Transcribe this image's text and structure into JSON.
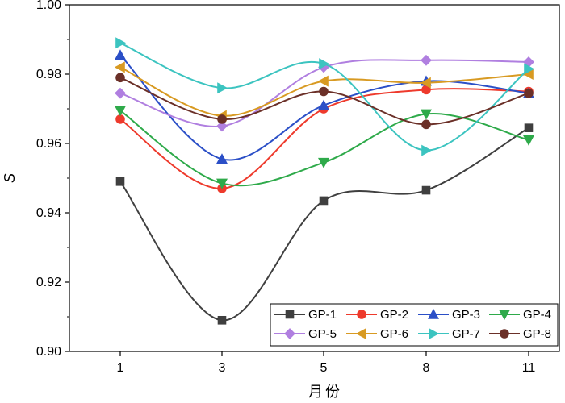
{
  "chart_data": {
    "type": "line",
    "xlabel": "月份",
    "ylabel": "S",
    "x": [
      1,
      3,
      5,
      8,
      11
    ],
    "x_tick_labels": [
      "1",
      "3",
      "5",
      "8",
      "11"
    ],
    "ylim": [
      0.9,
      1.0
    ],
    "y_ticks": [
      0.9,
      0.92,
      0.94,
      0.96,
      0.98,
      1.0
    ],
    "y_tick_labels": [
      "0.90",
      "0.92",
      "0.94",
      "0.96",
      "0.98",
      "1.00"
    ],
    "grid": false,
    "legend_position": "bottom-right",
    "series": [
      {
        "name": "GP-1",
        "color": "#3f3f3f",
        "marker": "square",
        "values": [
          0.949,
          0.909,
          0.9435,
          0.9465,
          0.9645
        ]
      },
      {
        "name": "GP-2",
        "color": "#ee3a2c",
        "marker": "circle",
        "values": [
          0.967,
          0.947,
          0.97,
          0.9755,
          0.975
        ]
      },
      {
        "name": "GP-3",
        "color": "#2b4fc7",
        "marker": "triangle-up",
        "values": [
          0.9855,
          0.9555,
          0.971,
          0.978,
          0.9745
        ]
      },
      {
        "name": "GP-4",
        "color": "#2eaa4a",
        "marker": "triangle-down",
        "values": [
          0.9695,
          0.9485,
          0.9545,
          0.9685,
          0.961
        ]
      },
      {
        "name": "GP-5",
        "color": "#b07fe0",
        "marker": "diamond",
        "values": [
          0.9745,
          0.965,
          0.982,
          0.984,
          0.9835
        ]
      },
      {
        "name": "GP-6",
        "color": "#d89a22",
        "marker": "triangle-left",
        "values": [
          0.982,
          0.968,
          0.978,
          0.9775,
          0.98
        ]
      },
      {
        "name": "GP-7",
        "color": "#3cc4c0",
        "marker": "triangle-right",
        "values": [
          0.989,
          0.976,
          0.983,
          0.958,
          0.9815
        ]
      },
      {
        "name": "GP-8",
        "color": "#6b3028",
        "marker": "circle",
        "values": [
          0.979,
          0.967,
          0.975,
          0.9655,
          0.9745
        ]
      }
    ]
  }
}
